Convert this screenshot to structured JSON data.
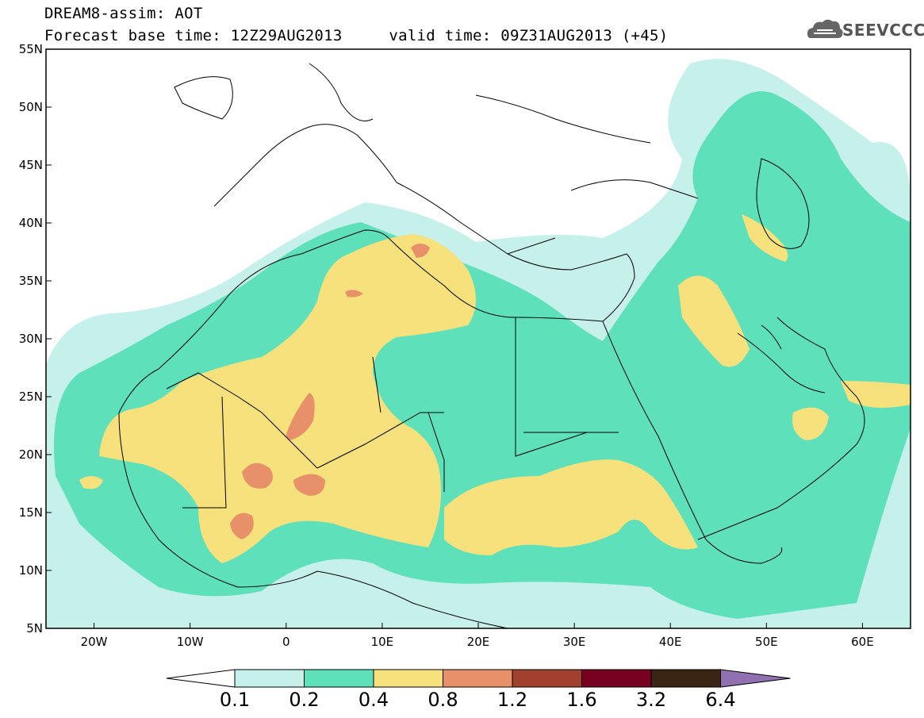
{
  "title": {
    "line1": "DREAM8-assim: AOT",
    "line2": "Forecast base time: 12Z29AUG2013     valid time: 09Z31AUG2013 (+45)"
  },
  "logo": {
    "text": "SEEVCCC",
    "icon": "cloud-logo-icon"
  },
  "map": {
    "lon_range": [
      -25,
      65
    ],
    "lat_range": [
      5,
      55
    ],
    "lon_ticks": [
      {
        "value": -20,
        "label": "20W"
      },
      {
        "value": -10,
        "label": "10W"
      },
      {
        "value": 0,
        "label": "0"
      },
      {
        "value": 10,
        "label": "10E"
      },
      {
        "value": 20,
        "label": "20E"
      },
      {
        "value": 30,
        "label": "30E"
      },
      {
        "value": 40,
        "label": "40E"
      },
      {
        "value": 50,
        "label": "50E"
      },
      {
        "value": 60,
        "label": "60E"
      }
    ],
    "lat_ticks": [
      {
        "value": 55,
        "label": "55N"
      },
      {
        "value": 50,
        "label": "50N"
      },
      {
        "value": 45,
        "label": "45N"
      },
      {
        "value": 40,
        "label": "40N"
      },
      {
        "value": 35,
        "label": "35N"
      },
      {
        "value": 30,
        "label": "30N"
      },
      {
        "value": 25,
        "label": "25N"
      },
      {
        "value": 20,
        "label": "20N"
      },
      {
        "value": 15,
        "label": "15N"
      },
      {
        "value": 10,
        "label": "10N"
      },
      {
        "value": 5,
        "label": "5N"
      }
    ]
  },
  "colorbar": {
    "colors": [
      "#ffffff",
      "#c6f0ea",
      "#5ee0bb",
      "#f6e17c",
      "#e8906a",
      "#a0402e",
      "#780020",
      "#3a2414",
      "#9070b0"
    ],
    "labels": [
      "0.1",
      "0.2",
      "0.4",
      "0.8",
      "1.2",
      "1.6",
      "3.2",
      "6.4"
    ]
  }
}
